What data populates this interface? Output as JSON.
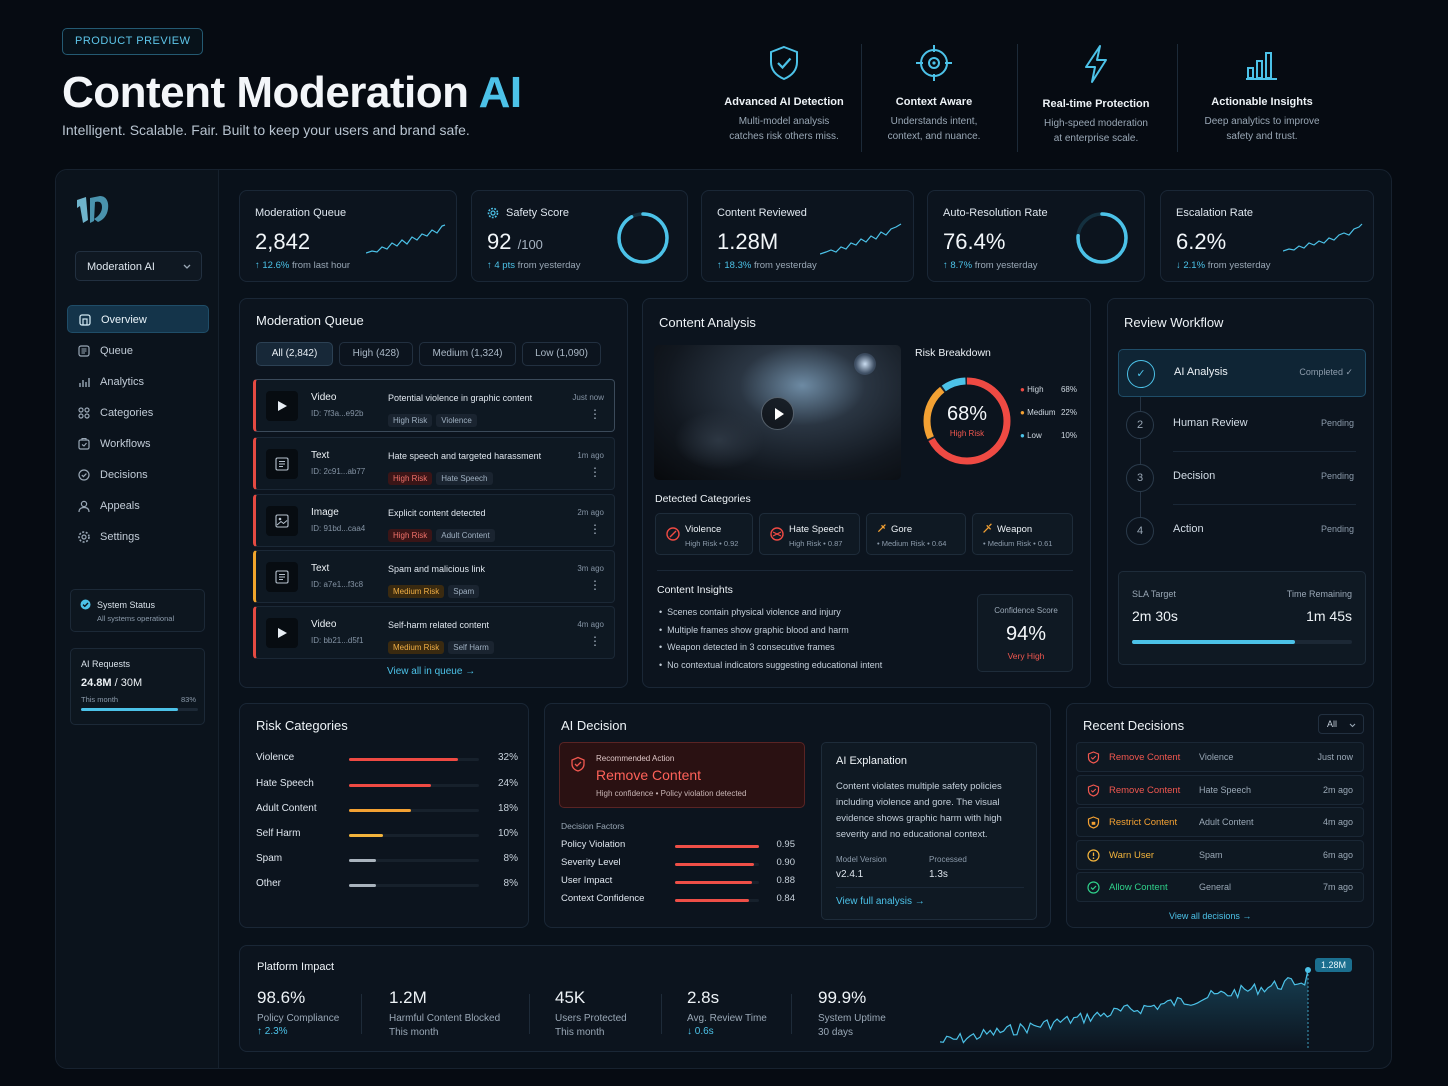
{
  "header": {
    "badge": "PRODUCT PREVIEW",
    "title_main": "Content Moderation",
    "title_ai": "AI",
    "subtitle": "Intelligent. Scalable. Fair. Built to keep your users and brand safe.",
    "features": [
      {
        "icon": "shield-check-icon",
        "title": "Advanced AI Detection",
        "desc1": "Multi-model analysis",
        "desc2": "catches risk others miss."
      },
      {
        "icon": "target-icon",
        "title": "Context Aware",
        "desc1": "Understands intent,",
        "desc2": "context, and nuance."
      },
      {
        "icon": "lightning-icon",
        "title": "Real-time Protection",
        "desc1": "High-speed moderation",
        "desc2": "at enterprise scale."
      },
      {
        "icon": "bar-chart-icon",
        "title": "Actionable Insights",
        "desc1": "Deep analytics to improve",
        "desc2": "safety and trust."
      }
    ]
  },
  "sidebar": {
    "workspace": "Moderation AI",
    "items": [
      {
        "label": "Overview",
        "icon": "home-icon",
        "active": true
      },
      {
        "label": "Queue",
        "icon": "list-icon"
      },
      {
        "label": "Analytics",
        "icon": "analytics-icon"
      },
      {
        "label": "Categories",
        "icon": "categories-icon"
      },
      {
        "label": "Workflows",
        "icon": "workflow-icon"
      },
      {
        "label": "Decisions",
        "icon": "decision-icon"
      },
      {
        "label": "Appeals",
        "icon": "appeals-icon"
      },
      {
        "label": "Settings",
        "icon": "gear-icon"
      }
    ],
    "status_title": "System Status",
    "status_sub": "All systems operational",
    "requests_title": "AI Requests",
    "requests_value": "24.8M",
    "requests_total": "/ 30M",
    "requests_period": "This month",
    "requests_pct": "83%",
    "requests_fraction": 0.83
  },
  "stats": [
    {
      "label": "Moderation Queue",
      "value": "2,842",
      "unit": "",
      "delta": "↑ 12.6%",
      "delta_text": "from last hour"
    },
    {
      "label": "Safety Score",
      "value": "92",
      "unit": "/100",
      "delta": "↑ 4 pts",
      "delta_text": "from yesterday",
      "ring": 0.92
    },
    {
      "label": "Content Reviewed",
      "value": "1.28M",
      "unit": "",
      "delta": "↑ 18.3%",
      "delta_text": "from yesterday"
    },
    {
      "label": "Auto-Resolution Rate",
      "value": "76.4%",
      "unit": "",
      "delta": "↑ 8.7%",
      "delta_text": "from yesterday",
      "ring": 0.764
    },
    {
      "label": "Escalation Rate",
      "value": "6.2%",
      "unit": "",
      "delta": "↓ 2.1%",
      "delta_text": "from yesterday"
    }
  ],
  "queue": {
    "title": "Moderation Queue",
    "tabs": [
      "All (2,842)",
      "High (428)",
      "Medium (1,324)",
      "Low (1,090)"
    ],
    "rows": [
      {
        "type": "Video",
        "id": "ID: 7f3a...e92b",
        "desc": "Potential violence in graphic content",
        "risk": "High Risk",
        "cat": "Violence",
        "time": "Just now"
      },
      {
        "type": "Text",
        "id": "ID: 2c91...ab77",
        "desc": "Hate speech and targeted harassment",
        "risk": "High Risk",
        "cat": "Hate Speech",
        "time": "1m ago"
      },
      {
        "type": "Image",
        "id": "ID: 91bd...caa4",
        "desc": "Explicit content detected",
        "risk": "High Risk",
        "cat": "Adult Content",
        "time": "2m ago"
      },
      {
        "type": "Text",
        "id": "ID: a7e1...f3c8",
        "desc": "Spam and malicious link",
        "risk": "Medium Risk",
        "cat": "Spam",
        "time": "3m ago"
      },
      {
        "type": "Video",
        "id": "ID: bb21...d5f1",
        "desc": "Self-harm related content",
        "risk": "Medium Risk",
        "cat": "Self Harm",
        "time": "4m ago"
      }
    ],
    "view_all": "View all in queue"
  },
  "analysis": {
    "title": "Content Analysis",
    "risk_title": "Risk Breakdown",
    "risk_value": "68%",
    "risk_label": "High Risk",
    "risk_legend": [
      {
        "name": "High",
        "value": "68%",
        "color": "#ef4a43"
      },
      {
        "name": "Medium",
        "value": "22%",
        "color": "#f3a133"
      },
      {
        "name": "Low",
        "value": "10%",
        "color": "#4cc2e8"
      }
    ],
    "detected_title": "Detected Categories",
    "detected": [
      {
        "name": "Violence",
        "score": "High Risk  •  0.92",
        "icon": "violence-icon"
      },
      {
        "name": "Hate Speech",
        "score": "High Risk  •  0.87",
        "icon": "hate-speech-icon"
      },
      {
        "name": "Gore",
        "score": "•  Medium Risk  •  0.64",
        "icon": "gore-icon"
      },
      {
        "name": "Weapon",
        "score": "•  Medium Risk  •  0.61",
        "icon": "weapon-icon"
      }
    ],
    "insights_title": "Content Insights",
    "insights": [
      "Scenes contain physical violence and injury",
      "Multiple frames show graphic blood and harm",
      "Weapon detected in 3 consecutive frames",
      "No contextual indicators suggesting educational intent"
    ],
    "confidence_label": "Confidence Score",
    "confidence_value": "94%",
    "confidence_level": "Very High"
  },
  "workflow": {
    "title": "Review Workflow",
    "steps": [
      {
        "num": "✓",
        "name": "AI Analysis",
        "status": "Completed ✓"
      },
      {
        "num": "2",
        "name": "Human Review",
        "status": "Pending"
      },
      {
        "num": "3",
        "name": "Decision",
        "status": "Pending"
      },
      {
        "num": "4",
        "name": "Action",
        "status": "Pending"
      }
    ],
    "sla_label": "SLA Target",
    "sla_value": "2m 30s",
    "remain_label": "Time Remaining",
    "remain_value": "1m 45s",
    "progress_fraction": 0.74
  },
  "risk_categories": {
    "title": "Risk Categories",
    "items": [
      {
        "name": "Violence",
        "pct": "32%",
        "value": 32,
        "color": "#ef4a43"
      },
      {
        "name": "Hate Speech",
        "pct": "24%",
        "value": 24,
        "color": "#ef4a43"
      },
      {
        "name": "Adult Content",
        "pct": "18%",
        "value": 18,
        "color": "#f3a133"
      },
      {
        "name": "Self Harm",
        "pct": "10%",
        "value": 10,
        "color": "#f3b43c"
      },
      {
        "name": "Spam",
        "pct": "8%",
        "value": 8,
        "color": "#a9b3bd"
      },
      {
        "name": "Other",
        "pct": "8%",
        "value": 8,
        "color": "#a9b3bd"
      }
    ]
  },
  "decision": {
    "title": "AI Decision",
    "rec_label": "Recommended Action",
    "rec_value": "Remove Content",
    "rec_sub": "High confidence  •  Policy violation detected",
    "factors_title": "Decision Factors",
    "factors": [
      {
        "name": "Policy Violation",
        "value": "0.95",
        "v": 0.95
      },
      {
        "name": "Severity Level",
        "value": "0.90",
        "v": 0.9
      },
      {
        "name": "User Impact",
        "value": "0.88",
        "v": 0.88
      },
      {
        "name": "Context Confidence",
        "value": "0.84",
        "v": 0.84
      }
    ],
    "exp_title": "AI Explanation",
    "exp_lines": [
      "Content violates multiple safety policies",
      "including violence and gore. The visual",
      "evidence shows graphic harm with high",
      "severity and no educational context."
    ],
    "model_label": "Model Version",
    "model_value": "v2.4.1",
    "processed_label": "Processed",
    "processed_value": "1.3s",
    "view_full": "View full analysis"
  },
  "recent": {
    "title": "Recent Decisions",
    "filter": "All",
    "items": [
      {
        "action": "Remove Content",
        "cat": "Violence",
        "time": "Just now",
        "color": "#f0574f"
      },
      {
        "action": "Remove Content",
        "cat": "Hate Speech",
        "time": "2m ago",
        "color": "#f0574f"
      },
      {
        "action": "Restrict Content",
        "cat": "Adult Content",
        "time": "4m ago",
        "color": "#f3a133"
      },
      {
        "action": "Warn User",
        "cat": "Spam",
        "time": "6m ago",
        "color": "#f3b43c"
      },
      {
        "action": "Allow Content",
        "cat": "General",
        "time": "7m ago",
        "color": "#2fd08a"
      }
    ],
    "view_all": "View all decisions"
  },
  "impact": {
    "title": "Platform Impact",
    "metrics": [
      {
        "value": "98.6%",
        "label": "Policy Compliance",
        "sub": "↑ 2.3%"
      },
      {
        "value": "1.2M",
        "label": "Harmful Content Blocked",
        "sub": "This month"
      },
      {
        "value": "45K",
        "label": "Users Protected",
        "sub": "This month"
      },
      {
        "value": "2.8s",
        "label": "Avg. Review Time",
        "sub": "↓ 0.6s"
      },
      {
        "value": "99.9%",
        "label": "System Uptime",
        "sub": "30 days"
      }
    ],
    "chart_badge": "1.28M"
  }
}
